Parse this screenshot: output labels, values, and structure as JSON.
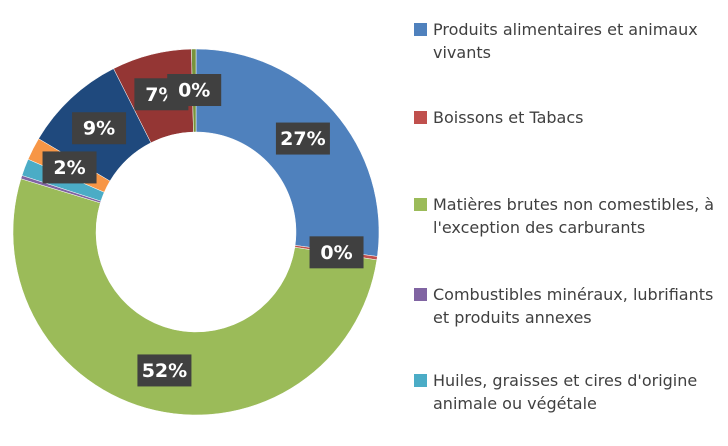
{
  "chart_data": {
    "type": "donut",
    "categories": [
      "Produits alimentaires et animaux vivants",
      "Boissons et Tabacs",
      "Matières brutes non comestibles, à l'exception des carburants",
      "Combustibles minéraux, lubrifiants et produits annexes",
      "Huiles, graisses et cires d'origine animale ou végétale",
      null,
      null,
      null,
      null
    ],
    "values": [
      27,
      0.3,
      52,
      0.3,
      1.5,
      2,
      9,
      7,
      0.4
    ],
    "value_labels": [
      "27%",
      "0%",
      "52%",
      null,
      null,
      "2%",
      "9%",
      "7%",
      "0%"
    ],
    "colors": [
      "#4f81bd",
      "#c0504d",
      "#9bbb59",
      "#8064a2",
      "#4bacc6",
      "#f79646",
      "#1f497d",
      "#943634",
      "#77933c"
    ],
    "legend": "right"
  }
}
